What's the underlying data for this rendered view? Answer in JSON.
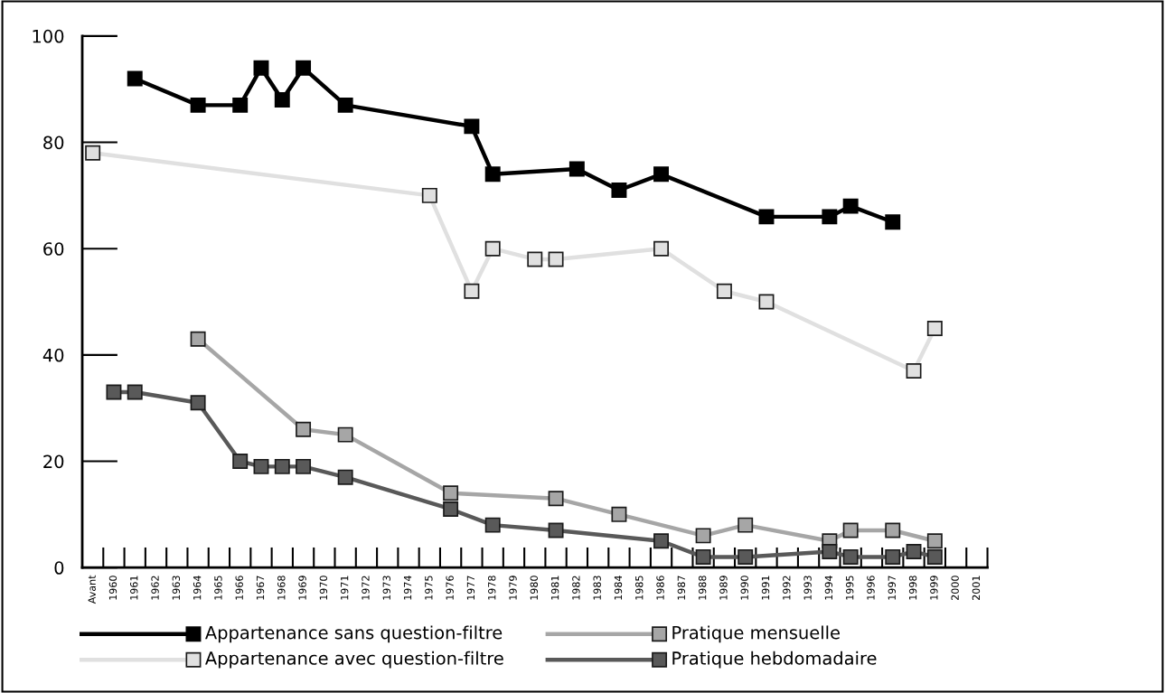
{
  "chart_data": {
    "type": "line",
    "categories": [
      "Avant",
      "1960",
      "1961",
      "1962",
      "1963",
      "1964",
      "1965",
      "1966",
      "1967",
      "1968",
      "1969",
      "1970",
      "1971",
      "1972",
      "1973",
      "1974",
      "1975",
      "1976",
      "1977",
      "1978",
      "1979",
      "1980",
      "1981",
      "1982",
      "1983",
      "1984",
      "1985",
      "1986",
      "1987",
      "1988",
      "1989",
      "1990",
      "1991",
      "1992",
      "1993",
      "1994",
      "1995",
      "1996",
      "1997",
      "1998",
      "1999",
      "2000",
      "2001"
    ],
    "ylim": [
      0,
      100
    ],
    "yticks": [
      0,
      20,
      40,
      60,
      80,
      100
    ],
    "grid": false,
    "legend": "bottom",
    "marker": "square",
    "line_style": "solid",
    "series": [
      {
        "name": "Appartenance sans question-filtre",
        "color": "#000000",
        "values": [
          null,
          null,
          92,
          null,
          null,
          87,
          null,
          87,
          94,
          88,
          94,
          null,
          87,
          null,
          null,
          null,
          null,
          null,
          83,
          74,
          null,
          null,
          null,
          75,
          null,
          71,
          null,
          74,
          null,
          null,
          null,
          null,
          66,
          null,
          null,
          66,
          68,
          null,
          65,
          null,
          null,
          null,
          null
        ]
      },
      {
        "name": "Appartenance avec question-filtre",
        "color": "#e0e0e0",
        "values": [
          78,
          null,
          null,
          null,
          null,
          null,
          null,
          null,
          null,
          null,
          null,
          null,
          null,
          null,
          null,
          null,
          70,
          null,
          52,
          60,
          null,
          58,
          58,
          null,
          null,
          null,
          null,
          60,
          null,
          null,
          52,
          null,
          50,
          null,
          null,
          null,
          null,
          null,
          null,
          37,
          45,
          null,
          null
        ]
      },
      {
        "name": "Pratique mensuelle",
        "color": "#a6a6a6",
        "values": [
          null,
          null,
          null,
          null,
          null,
          43,
          null,
          null,
          null,
          null,
          26,
          null,
          25,
          null,
          null,
          null,
          null,
          14,
          null,
          null,
          null,
          null,
          13,
          null,
          null,
          10,
          null,
          null,
          null,
          6,
          null,
          8,
          null,
          null,
          null,
          5,
          7,
          null,
          7,
          null,
          5,
          null,
          null
        ]
      },
      {
        "name": "Pratique hebdomadaire",
        "color": "#595959",
        "values": [
          null,
          33,
          33,
          null,
          null,
          31,
          null,
          20,
          19,
          19,
          19,
          null,
          17,
          null,
          null,
          null,
          null,
          11,
          null,
          8,
          null,
          null,
          7,
          null,
          null,
          null,
          null,
          5,
          null,
          2,
          null,
          2,
          null,
          null,
          null,
          3,
          2,
          null,
          2,
          3,
          2,
          null,
          null
        ]
      }
    ]
  }
}
